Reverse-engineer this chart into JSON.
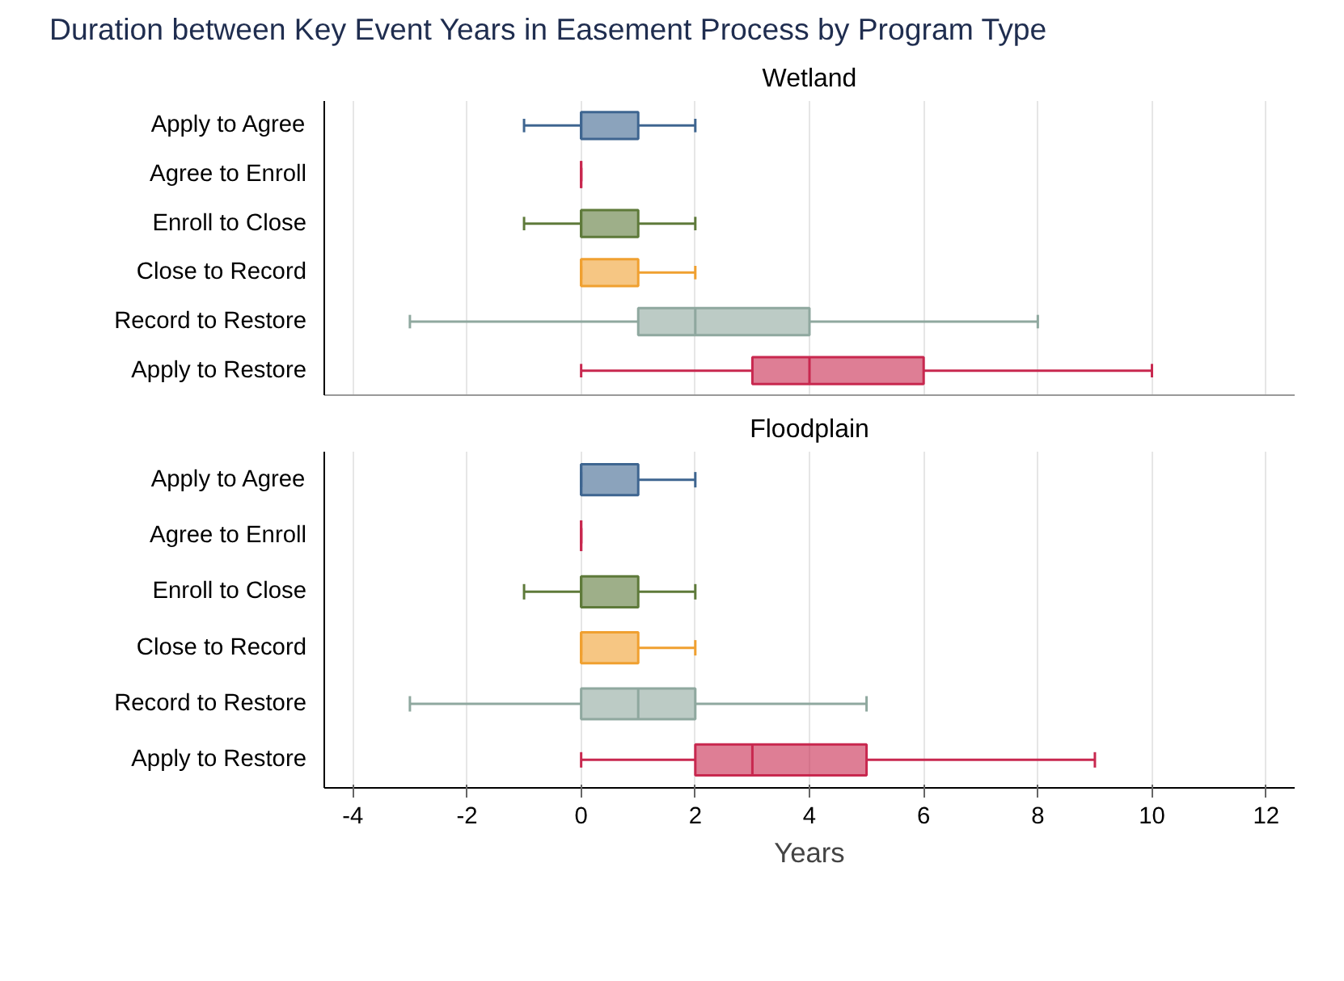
{
  "chart_data": [
    {
      "type": "box",
      "orientation": "horizontal",
      "title": "Duration between Key Event Years in Easement Process by Program Type",
      "subtitle": "Wetland",
      "categories": [
        "Apply to Agree",
        "Agree to Enroll",
        "Enroll to Close",
        "Close to Record",
        "Record to Restore",
        "Apply to Restore"
      ],
      "colors": [
        "#3e6590",
        "#c8284f",
        "#5e7a3a",
        "#f0a030",
        "#8fa89f",
        "#c8284f"
      ],
      "boxes": [
        {
          "low": -1,
          "q1": 0,
          "median": 0,
          "q3": 1,
          "high": 2
        },
        {
          "low": 0,
          "q1": 0,
          "median": 0,
          "q3": 0,
          "high": 0
        },
        {
          "low": -1,
          "q1": 0,
          "median": 0,
          "q3": 1,
          "high": 2
        },
        {
          "low": 0,
          "q1": 0,
          "median": 0,
          "q3": 1,
          "high": 2
        },
        {
          "low": -3,
          "q1": 1,
          "median": 2,
          "q3": 4,
          "high": 8
        },
        {
          "low": 0,
          "q1": 3,
          "median": 4,
          "q3": 6,
          "high": 10
        }
      ],
      "xlim": [
        -4.5,
        12.5
      ],
      "xticks": [
        -4,
        -2,
        0,
        2,
        4,
        6,
        8,
        10,
        12
      ],
      "grid": "x",
      "tick_labels": "y"
    },
    {
      "type": "box",
      "orientation": "horizontal",
      "title": "Floodplain",
      "xlabel": "Years",
      "categories": [
        "Apply to Agree",
        "Agree to Enroll",
        "Enroll to Close",
        "Close to Record",
        "Record to Restore",
        "Apply to Restore"
      ],
      "colors": [
        "#3e6590",
        "#c8284f",
        "#5e7a3a",
        "#f0a030",
        "#8fa89f",
        "#c8284f"
      ],
      "boxes": [
        {
          "low": 0,
          "q1": 0,
          "median": 0,
          "q3": 1,
          "high": 2
        },
        {
          "low": 0,
          "q1": 0,
          "median": 0,
          "q3": 0,
          "high": 0
        },
        {
          "low": -1,
          "q1": 0,
          "median": 0,
          "q3": 1,
          "high": 2
        },
        {
          "low": 0,
          "q1": 0,
          "median": 0,
          "q3": 1,
          "high": 2
        },
        {
          "low": -3,
          "q1": 0,
          "median": 1,
          "q3": 2,
          "high": 5
        },
        {
          "low": 0,
          "q1": 2,
          "median": 3,
          "q3": 5,
          "high": 9
        }
      ],
      "xlim": [
        -4.5,
        12.5
      ],
      "xticks": [
        -4,
        -2,
        0,
        2,
        4,
        6,
        8,
        10,
        12
      ],
      "grid": "x"
    }
  ]
}
